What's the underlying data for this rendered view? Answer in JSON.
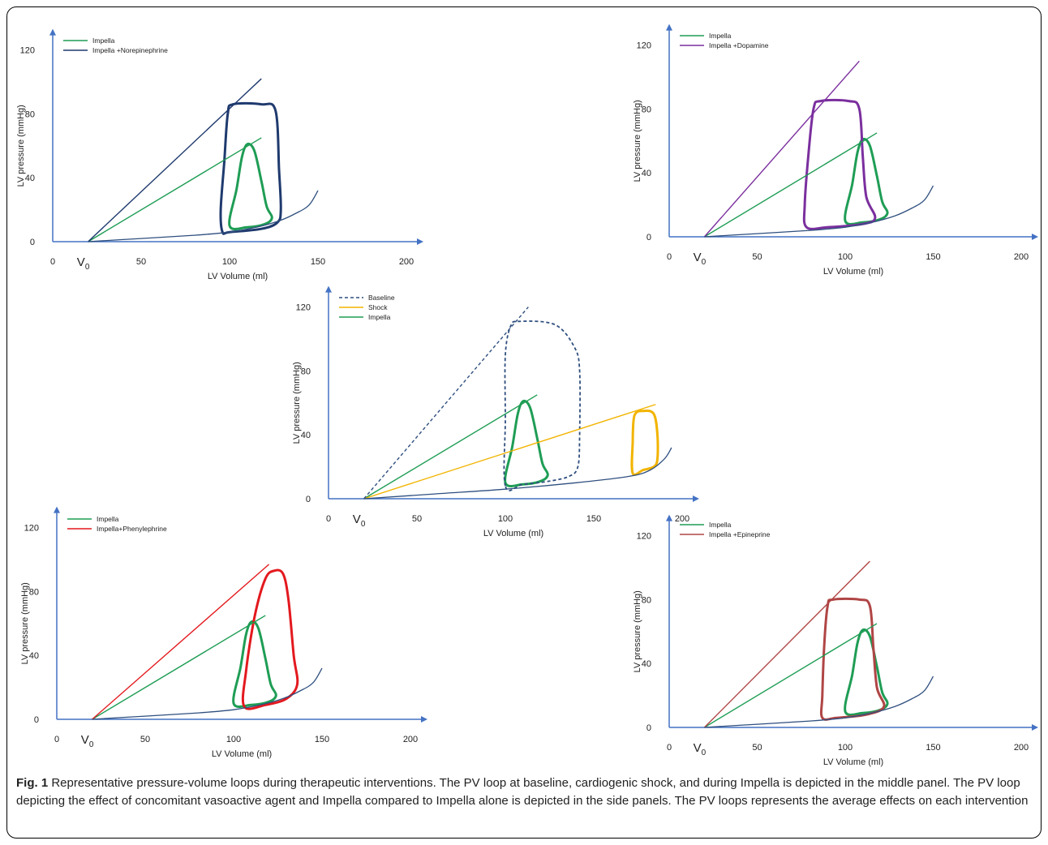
{
  "caption": {
    "fig_label": "Fig. 1",
    "text": "Representative pressure-volume loops during therapeutic interventions. The PV loop at baseline, cardiogenic shock, and during Impella is depicted in the middle panel. The PV loop depicting the effect of concomitant vasoactive agent and Impella compared to Impella alone is depicted in the side panels. The PV loops represents the average effects on each intervention"
  },
  "colors": {
    "axis": "#4472c4",
    "edpvr": "#2f4f7f",
    "impella": "#1f9d55",
    "norepinephrine": "#1f3a6e",
    "dopamine": "#7b2f9e",
    "baseline": "#2f4f7f",
    "shock": "#f2b400",
    "phenylephrine": "#e3191e",
    "epinephrine": "#b04545"
  },
  "chart_data": [
    {
      "id": "norepinephrine",
      "type": "line",
      "xlabel": "LV Volume (ml)",
      "ylabel": "LV pressure (mmHg)",
      "xlim": [
        0,
        200
      ],
      "ylim": [
        0,
        120
      ],
      "xticks": [
        "0",
        "50",
        "100",
        "150",
        "200"
      ],
      "yticks": [
        "0",
        "40",
        "80",
        "120"
      ],
      "v0_label": "V0",
      "legend": [
        "Impella",
        "Impella +Norepinephrine"
      ],
      "series": [
        {
          "name": "Impella",
          "color_key": "impella",
          "kind": "loop",
          "points": [
            [
              100,
              10
            ],
            [
              104,
              33
            ],
            [
              107,
              53
            ],
            [
              110,
              61
            ],
            [
              114,
              57
            ],
            [
              118,
              38
            ],
            [
              121,
              22
            ],
            [
              124,
              15
            ],
            [
              120,
              11
            ],
            [
              110,
              9
            ],
            [
              100,
              10
            ]
          ]
        },
        {
          "name": "Impella +Norepinephrine",
          "color_key": "norepinephrine",
          "kind": "loop",
          "points": [
            [
              96,
              6
            ],
            [
              95,
              20
            ],
            [
              97,
              50
            ],
            [
              99,
              80
            ],
            [
              102,
              86
            ],
            [
              118,
              86
            ],
            [
              126,
              82
            ],
            [
              128,
              45
            ],
            [
              129,
              20
            ],
            [
              127,
              12
            ],
            [
              118,
              8
            ],
            [
              100,
              6
            ],
            [
              96,
              6
            ]
          ]
        },
        {
          "kind": "line",
          "color_key": "impella",
          "points": [
            [
              20,
              0
            ],
            [
              118,
              65
            ]
          ]
        },
        {
          "kind": "line",
          "color_key": "norepinephrine",
          "points": [
            [
              20,
              0
            ],
            [
              118,
              102
            ]
          ]
        },
        {
          "kind": "line",
          "color_key": "edpvr",
          "points": [
            [
              20,
              0
            ],
            [
              50,
              2
            ],
            [
              80,
              4
            ],
            [
              100,
              6
            ],
            [
              115,
              9
            ],
            [
              128,
              13
            ],
            [
              138,
              18
            ],
            [
              145,
              23
            ],
            [
              150,
              32
            ]
          ]
        }
      ]
    },
    {
      "id": "dopamine",
      "type": "line",
      "xlabel": "LV Volume (ml)",
      "ylabel": "LV pressure (mmHg)",
      "xlim": [
        0,
        200
      ],
      "ylim": [
        0,
        120
      ],
      "xticks": [
        "0",
        "50",
        "100",
        "150",
        "200"
      ],
      "yticks": [
        "0",
        "40",
        "80",
        "120"
      ],
      "v0_label": "V0",
      "legend": [
        "Impella",
        "Impella +Dopamine"
      ],
      "series": [
        {
          "name": "Impella",
          "color_key": "impella",
          "kind": "loop",
          "points": [
            [
              100,
              10
            ],
            [
              104,
              33
            ],
            [
              107,
              53
            ],
            [
              110,
              61
            ],
            [
              114,
              57
            ],
            [
              118,
              38
            ],
            [
              121,
              22
            ],
            [
              124,
              15
            ],
            [
              120,
              11
            ],
            [
              110,
              9
            ],
            [
              100,
              10
            ]
          ]
        },
        {
          "name": "Impella +Dopamine",
          "color_key": "dopamine",
          "kind": "loop",
          "points": [
            [
              78,
              6
            ],
            [
              77,
              20
            ],
            [
              79,
              50
            ],
            [
              82,
              80
            ],
            [
              86,
              85
            ],
            [
              102,
              85
            ],
            [
              108,
              80
            ],
            [
              110,
              50
            ],
            [
              112,
              25
            ],
            [
              117,
              12
            ],
            [
              110,
              8
            ],
            [
              90,
              6
            ],
            [
              78,
              6
            ]
          ]
        },
        {
          "kind": "line",
          "color_key": "impella",
          "points": [
            [
              20,
              0
            ],
            [
              118,
              65
            ]
          ]
        },
        {
          "kind": "line",
          "color_key": "dopamine",
          "points": [
            [
              20,
              0
            ],
            [
              108,
              110
            ]
          ]
        },
        {
          "kind": "line",
          "color_key": "edpvr",
          "points": [
            [
              20,
              0
            ],
            [
              50,
              2
            ],
            [
              80,
              4
            ],
            [
              100,
              6
            ],
            [
              115,
              9
            ],
            [
              128,
              13
            ],
            [
              138,
              18
            ],
            [
              145,
              23
            ],
            [
              150,
              32
            ]
          ]
        }
      ]
    },
    {
      "id": "baseline-shock-impella",
      "type": "line",
      "xlabel": "LV Volume (ml)",
      "ylabel": "LV pressure (mmHg)",
      "xlim": [
        0,
        200
      ],
      "ylim": [
        0,
        120
      ],
      "xticks": [
        "0",
        "50",
        "100",
        "150",
        "200"
      ],
      "yticks": [
        "0",
        "40",
        "80",
        "120"
      ],
      "v0_label": "V0",
      "legend": [
        "Baseline",
        "Shock",
        "Impella"
      ],
      "series": [
        {
          "name": "Impella",
          "color_key": "impella",
          "kind": "loop",
          "points": [
            [
              100,
              10
            ],
            [
              104,
              33
            ],
            [
              107,
              53
            ],
            [
              110,
              61
            ],
            [
              114,
              57
            ],
            [
              118,
              38
            ],
            [
              121,
              22
            ],
            [
              124,
              15
            ],
            [
              120,
              11
            ],
            [
              110,
              9
            ],
            [
              100,
              10
            ]
          ]
        },
        {
          "name": "Baseline",
          "color_key": "baseline",
          "kind": "loop",
          "dashed": true,
          "points": [
            [
              100,
              8
            ],
            [
              100,
              50
            ],
            [
              100,
              90
            ],
            [
              103,
              108
            ],
            [
              108,
              111
            ],
            [
              128,
              109
            ],
            [
              139,
              95
            ],
            [
              142,
              80
            ],
            [
              142,
              40
            ],
            [
              141,
              20
            ],
            [
              136,
              14
            ],
            [
              125,
              11
            ],
            [
              110,
              9
            ],
            [
              100,
              8
            ]
          ]
        },
        {
          "name": "Shock",
          "color_key": "shock",
          "kind": "loop",
          "points": [
            [
              172,
              16
            ],
            [
              172,
              35
            ],
            [
              173,
              52
            ],
            [
              178,
              55
            ],
            [
              184,
              53
            ],
            [
              186,
              40
            ],
            [
              186,
              25
            ],
            [
              184,
              20
            ],
            [
              178,
              18
            ],
            [
              172,
              16
            ]
          ]
        },
        {
          "kind": "line",
          "color_key": "impella",
          "points": [
            [
              20,
              0
            ],
            [
              118,
              65
            ]
          ]
        },
        {
          "kind": "line",
          "color_key": "shock",
          "points": [
            [
              20,
              0
            ],
            [
              185,
              59
            ]
          ]
        },
        {
          "kind": "line",
          "color_key": "baseline",
          "dashed": true,
          "points": [
            [
              20,
              0
            ],
            [
              113,
              120
            ]
          ]
        },
        {
          "kind": "line",
          "color_key": "edpvr",
          "points": [
            [
              20,
              0
            ],
            [
              60,
              3
            ],
            [
              100,
              6
            ],
            [
              140,
              10
            ],
            [
              170,
              14
            ],
            [
              182,
              18
            ],
            [
              190,
              25
            ],
            [
              194,
              32
            ]
          ]
        }
      ]
    },
    {
      "id": "phenylephrine",
      "type": "line",
      "xlabel": "LV Volume (ml)",
      "ylabel": "LV pressure (mmHg)",
      "xlim": [
        0,
        200
      ],
      "ylim": [
        0,
        120
      ],
      "xticks": [
        "0",
        "50",
        "100",
        "150",
        "200"
      ],
      "yticks": [
        "0",
        "40",
        "80",
        "120"
      ],
      "v0_label": "V0",
      "legend": [
        "Impella",
        "Impella+Phenylephrine"
      ],
      "series": [
        {
          "name": "Impella",
          "color_key": "impella",
          "kind": "loop",
          "points": [
            [
              100,
              10
            ],
            [
              104,
              33
            ],
            [
              107,
              53
            ],
            [
              110,
              61
            ],
            [
              114,
              57
            ],
            [
              118,
              38
            ],
            [
              121,
              22
            ],
            [
              124,
              15
            ],
            [
              120,
              11
            ],
            [
              110,
              9
            ],
            [
              100,
              10
            ]
          ]
        },
        {
          "name": "Impella+Phenylephrine",
          "color_key": "phenylephrine",
          "kind": "loop",
          "points": [
            [
              106,
              8
            ],
            [
              107,
              30
            ],
            [
              112,
              65
            ],
            [
              118,
              88
            ],
            [
              123,
              93
            ],
            [
              128,
              91
            ],
            [
              131,
              75
            ],
            [
              134,
              40
            ],
            [
              136,
              22
            ],
            [
              130,
              13
            ],
            [
              118,
              9
            ],
            [
              106,
              8
            ]
          ]
        },
        {
          "kind": "line",
          "color_key": "impella",
          "points": [
            [
              20,
              0
            ],
            [
              118,
              65
            ]
          ]
        },
        {
          "kind": "line",
          "color_key": "phenylephrine",
          "points": [
            [
              20,
              0
            ],
            [
              120,
              97
            ]
          ]
        },
        {
          "kind": "line",
          "color_key": "edpvr",
          "points": [
            [
              20,
              0
            ],
            [
              50,
              2
            ],
            [
              80,
              4
            ],
            [
              100,
              6
            ],
            [
              115,
              9
            ],
            [
              128,
              13
            ],
            [
              138,
              18
            ],
            [
              145,
              23
            ],
            [
              150,
              32
            ]
          ]
        }
      ]
    },
    {
      "id": "epinephrine",
      "type": "line",
      "xlabel": "LV Volume (ml)",
      "ylabel": "LV pressure (mmHg)",
      "xlim": [
        0,
        200
      ],
      "ylim": [
        0,
        120
      ],
      "xticks": [
        "0",
        "50",
        "100",
        "150",
        "200"
      ],
      "yticks": [
        "0",
        "40",
        "80",
        "120"
      ],
      "v0_label": "V0",
      "legend": [
        "Impella",
        "Impella +Epineprine"
      ],
      "series": [
        {
          "name": "Impella",
          "color_key": "impella",
          "kind": "loop",
          "points": [
            [
              100,
              10
            ],
            [
              104,
              33
            ],
            [
              107,
              53
            ],
            [
              110,
              61
            ],
            [
              114,
              57
            ],
            [
              118,
              38
            ],
            [
              121,
              22
            ],
            [
              124,
              15
            ],
            [
              120,
              11
            ],
            [
              110,
              9
            ],
            [
              100,
              10
            ]
          ]
        },
        {
          "name": "Impella +Epineprine",
          "color_key": "epinephrine",
          "kind": "loop",
          "points": [
            [
              87,
              6
            ],
            [
              87,
              20
            ],
            [
              88,
              50
            ],
            [
              90,
              76
            ],
            [
              93,
              80
            ],
            [
              108,
              80
            ],
            [
              114,
              76
            ],
            [
              116,
              50
            ],
            [
              118,
              25
            ],
            [
              122,
              13
            ],
            [
              112,
              8
            ],
            [
              95,
              6
            ],
            [
              87,
              6
            ]
          ]
        },
        {
          "kind": "line",
          "color_key": "impella",
          "points": [
            [
              20,
              0
            ],
            [
              118,
              65
            ]
          ]
        },
        {
          "kind": "line",
          "color_key": "epinephrine",
          "points": [
            [
              20,
              0
            ],
            [
              114,
              104
            ]
          ]
        },
        {
          "kind": "line",
          "color_key": "edpvr",
          "points": [
            [
              20,
              0
            ],
            [
              50,
              2
            ],
            [
              80,
              4
            ],
            [
              100,
              6
            ],
            [
              115,
              9
            ],
            [
              128,
              13
            ],
            [
              138,
              18
            ],
            [
              145,
              23
            ],
            [
              150,
              32
            ]
          ]
        }
      ]
    }
  ]
}
